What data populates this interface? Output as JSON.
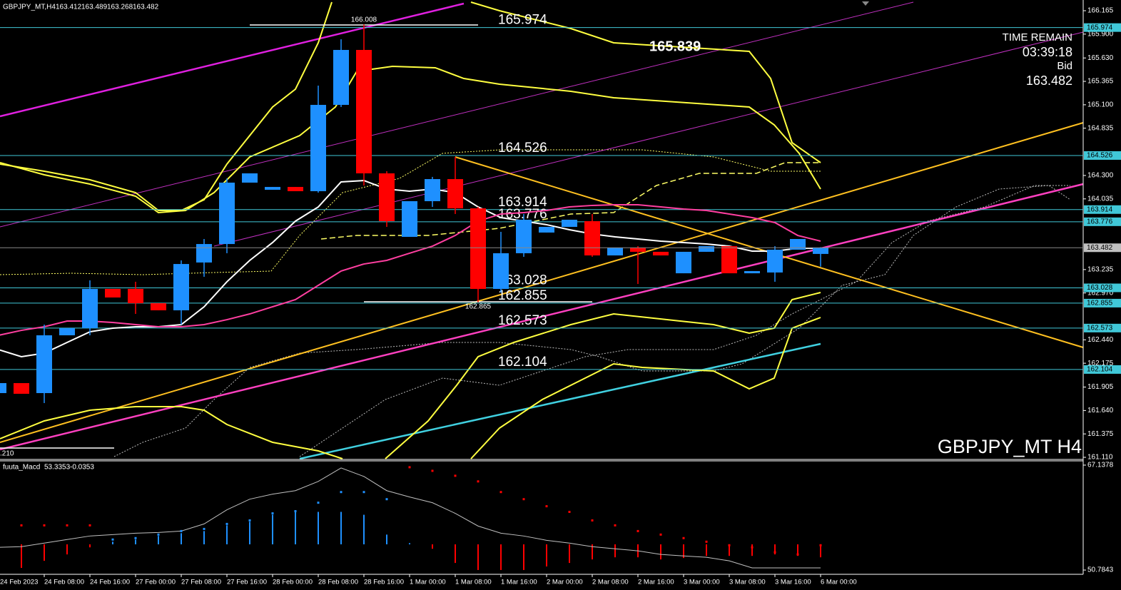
{
  "chart_data": {
    "type": "candlestick",
    "title": "GBPJPY_MT,H4",
    "categories": [
      "24 Feb 2023",
      null,
      "24 Feb 08:00",
      null,
      "24 Feb 16:00",
      null,
      "27 Feb 00:00",
      null,
      "27 Feb 08:00",
      null,
      "27 Feb 16:00",
      null,
      "28 Feb 00:00",
      null,
      "28 Feb 08:00",
      null,
      "28 Feb 16:00",
      null,
      "1 Mar 00:00",
      null,
      "1 Mar 08:00",
      null,
      "1 Mar 16:00",
      null,
      "2 Mar 00:00",
      null,
      "2 Mar 08:00",
      null,
      "2 Mar 16:00",
      null,
      "3 Mar 00:00",
      null,
      "3 Mar 08:00",
      null,
      "3 Mar 16:00",
      null,
      "6 Mar 00:00"
    ],
    "open": [
      161.837,
      161.95,
      161.837,
      162.491,
      162.572,
      163.016,
      163.016,
      162.854,
      162.774,
      163.315,
      163.524,
      164.219,
      164.138,
      164.17,
      164.122,
      165.099,
      165.721,
      164.324,
      163.605,
      164.009,
      164.259,
      163.928,
      163.016,
      163.42,
      163.654,
      163.718,
      163.783,
      163.395,
      163.484,
      163.436,
      163.193,
      163.436,
      163.5,
      163.193,
      163.202,
      163.46,
      163.412
    ],
    "high": [
      161.95,
      161.95,
      162.612,
      162.572,
      163.113,
      163.016,
      163.097,
      162.854,
      163.339,
      163.581,
      164.267,
      164.324,
      164.17,
      164.17,
      165.317,
      165.842,
      166.008,
      164.348,
      164.009,
      164.284,
      164.51,
      163.944,
      163.662,
      163.864,
      163.718,
      163.799,
      163.864,
      163.484,
      163.5,
      163.436,
      163.436,
      163.5,
      163.5,
      163.218,
      163.5,
      163.581,
      163.489
    ],
    "low": [
      161.837,
      161.829,
      161.724,
      162.491,
      162.491,
      162.919,
      162.733,
      162.774,
      162.612,
      163.153,
      163.42,
      164.219,
      164.138,
      164.122,
      164.106,
      165.075,
      164.187,
      163.718,
      163.605,
      163.944,
      163.864,
      162.865,
      162.975,
      163.379,
      163.654,
      163.718,
      163.379,
      163.395,
      163.072,
      163.395,
      163.193,
      163.436,
      163.193,
      163.193,
      163.097,
      163.46,
      163.268
    ],
    "close": [
      161.95,
      161.829,
      162.491,
      162.572,
      163.016,
      162.919,
      162.854,
      162.774,
      163.298,
      163.524,
      164.219,
      164.324,
      164.17,
      164.122,
      165.099,
      165.721,
      164.324,
      163.783,
      164.009,
      164.259,
      163.928,
      163.016,
      163.42,
      163.799,
      163.718,
      163.799,
      163.395,
      163.484,
      163.436,
      163.395,
      163.436,
      163.5,
      163.193,
      163.218,
      163.46,
      163.581,
      163.482
    ],
    "up_color": "#1e90ff",
    "down_color": "#ff0000",
    "moving_averages": [
      {
        "color": "#ffffff",
        "values": [
          162.329,
          162.249,
          162.289,
          162.41,
          162.531,
          162.572,
          162.588,
          162.588,
          162.612,
          162.814,
          163.097,
          163.339,
          163.541,
          163.783,
          163.944,
          164.227,
          164.243,
          164.146,
          164.122,
          164.146,
          164.106,
          163.944,
          163.823,
          163.783,
          163.743,
          163.686,
          163.638,
          163.605,
          163.581,
          163.557,
          163.541,
          163.524,
          163.5,
          163.444,
          163.444,
          163.476,
          163.476
        ]
      },
      {
        "color": "#ff3fa0",
        "values": [
          162.491,
          162.547,
          162.588,
          162.652,
          162.652,
          162.636,
          162.612,
          162.588,
          162.588,
          162.612,
          162.668,
          162.733,
          162.814,
          162.895,
          163.056,
          163.218,
          163.298,
          163.339,
          163.42,
          163.5,
          163.621,
          163.783,
          163.864,
          163.88,
          163.904,
          163.944,
          163.961,
          163.969,
          163.969,
          163.944,
          163.92,
          163.904,
          163.864,
          163.823,
          163.767,
          163.621,
          163.557
        ]
      }
    ],
    "ylim": [
      161.094,
      166.286
    ],
    "yticks": [
      166.165,
      {
        "value": 165.9,
        "label": "165.900"
      },
      {
        "value": 165.63,
        "label": "165.630"
      },
      165.365,
      {
        "value": 165.1,
        "label": "165.100"
      },
      164.835,
      {
        "value": 164.3,
        "label": "164.300"
      },
      164.035,
      163.235,
      {
        "value": 162.97,
        "label": "162.970"
      },
      {
        "value": 162.44,
        "label": "162.440"
      },
      162.175,
      161.905,
      {
        "value": 161.64,
        "label": "161.640"
      },
      161.375,
      {
        "value": 161.11,
        "label": "161.110"
      }
    ],
    "levels": [
      165.974,
      164.526,
      163.914,
      163.776,
      163.028,
      162.855,
      162.573,
      162.104
    ],
    "level_color": "#40c8d8",
    "high_annotation_index": 16,
    "low_annotation_index": 21,
    "annotation": 165.839,
    "bottom_annotation": ".210",
    "time_remain_label": "TIME REMAIN",
    "time_remain": "03:39:18",
    "bid_label": "Bid",
    "watermark": "GBPJPY_MT H4",
    "macd": {
      "title": "fuuta_Macd",
      "header_values": [
        53.3353,
        -0.0353
      ],
      "ylim": [
        50.12,
        67.8
      ],
      "yticks": [
        67.1378,
        50.7843
      ],
      "histogram": [
        51.12,
        51.12,
        52.22,
        53.22,
        54.32,
        55.2,
        55.53,
        56.09,
        56.53,
        56.86,
        57.75,
        58.3,
        59.4,
        59.85,
        59.85,
        59.85,
        59.4,
        56.31,
        54.98,
        54.1,
        51.89,
        50.79,
        50.79,
        50.79,
        51.34,
        51.89,
        52.44,
        52.77,
        52.77,
        52.44,
        52.66,
        52.99,
        52.99,
        52.99,
        53.22,
        52.99,
        52.77
      ],
      "line": [
        54.32,
        54.43,
        54.98,
        55.54,
        56.09,
        56.31,
        56.53,
        56.64,
        56.86,
        57.97,
        60.18,
        61.83,
        62.61,
        63.16,
        64.6,
        66.7,
        65.37,
        63.16,
        62.17,
        61.28,
        59.62,
        57.64,
        56.53,
        56.09,
        55.42,
        54.98,
        54.43,
        54.1,
        53.77,
        53.22,
        52.99,
        52.77,
        52.22,
        51.12,
        51.12,
        51.12,
        51.12
      ],
      "signal": [
        57.75,
        57.75,
        57.75,
        57.75,
        57.75,
        55.54,
        55.76,
        56.31,
        56.86,
        57.19,
        57.97,
        58.52,
        59.62,
        59.96,
        61.28,
        62.94,
        62.94,
        61.83,
        66.81,
        66.25,
        65.48,
        64.6,
        62.94,
        61.83,
        60.73,
        59.85,
        58.52,
        57.75,
        56.86,
        56.31,
        55.76,
        55.2,
        54.65,
        54.32,
        53.55,
        53.22,
        54.65
      ],
      "line_color": "#c0c0c0"
    }
  }
}
